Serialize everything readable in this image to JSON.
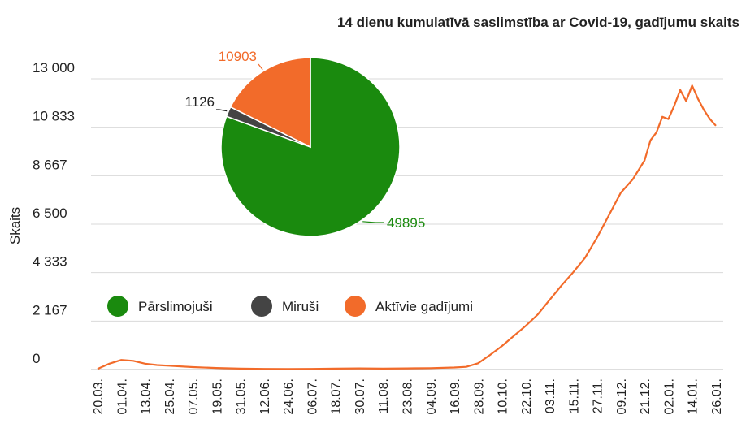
{
  "chart_data": [
    {
      "type": "line",
      "title": "14 dienu kumulatīvā saslimstība ar Covid-19, gadījumu skaits",
      "ylabel": "Skaits",
      "xlabel": "",
      "ylim": [
        0,
        13000
      ],
      "yticks": [
        "0",
        "2 167",
        "4 333",
        "6 500",
        "8 667",
        "10 833",
        "13 000"
      ],
      "ytick_values": [
        0,
        2167,
        4333,
        6500,
        8667,
        10833,
        13000
      ],
      "x_tick_labels": [
        "20.03.",
        "01.04.",
        "13.04.",
        "25.04.",
        "07.05.",
        "19.05.",
        "31.05.",
        "12.06.",
        "24.06.",
        "06.07.",
        "18.07.",
        "30.07.",
        "11.08.",
        "23.08.",
        "04.09.",
        "16.09.",
        "28.09.",
        "10.10.",
        "22.10.",
        "03.11.",
        "15.11.",
        "27.11.",
        "09.12.",
        "21.12.",
        "02.01.",
        "14.01.",
        "26.01."
      ],
      "grid": true,
      "series": [
        {
          "color": "#f26b2a",
          "x": [
            "20.03.",
            "26.03.",
            "01.04.",
            "07.04.",
            "13.04.",
            "19.04.",
            "25.04.",
            "07.05.",
            "19.05.",
            "31.05.",
            "12.06.",
            "24.06.",
            "06.07.",
            "18.07.",
            "30.07.",
            "11.08.",
            "23.08.",
            "04.09.",
            "16.09.",
            "22.09.",
            "28.09.",
            "04.10.",
            "10.10.",
            "16.10.",
            "22.10.",
            "28.10.",
            "03.11.",
            "09.11.",
            "15.11.",
            "21.11.",
            "27.11.",
            "03.12.",
            "09.12.",
            "15.12.",
            "21.12.",
            "24.12.",
            "27.12.",
            "30.12.",
            "02.01.",
            "05.01.",
            "08.01.",
            "11.01.",
            "14.01.",
            "17.01.",
            "20.01.",
            "23.01.",
            "26.01."
          ],
          "values": [
            30,
            260,
            430,
            390,
            260,
            200,
            170,
            110,
            70,
            40,
            30,
            20,
            30,
            40,
            50,
            40,
            50,
            60,
            90,
            120,
            280,
            650,
            1050,
            1500,
            1950,
            2450,
            3100,
            3750,
            4350,
            5000,
            5900,
            6900,
            7900,
            8500,
            9350,
            10250,
            10600,
            11300,
            11200,
            11800,
            12500,
            12000,
            12700,
            12100,
            11600,
            11200,
            10900
          ]
        }
      ]
    },
    {
      "type": "pie",
      "categories": [
        "Pārslimojuši",
        "Miruši",
        "Aktīvie gadījumi"
      ],
      "values": [
        49895,
        1126,
        10903
      ],
      "labels": [
        "49895",
        "1126",
        "10903"
      ],
      "colors": [
        "#1a8a0e",
        "#444444",
        "#f26b2a"
      ],
      "legend_position": "bottom-left"
    }
  ]
}
